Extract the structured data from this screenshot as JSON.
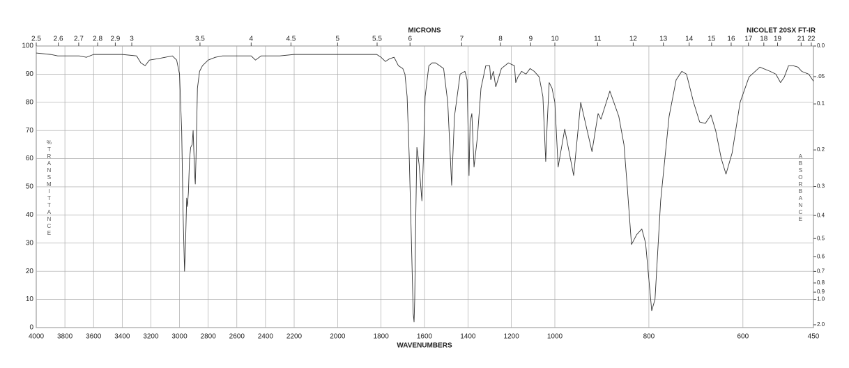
{
  "chart_data": {
    "type": "line",
    "title": "NICOLET 20SX FT-IR",
    "x_label": "WAVENUMBERS",
    "x2_label": "MICRONS",
    "y_label": "%TRANSMITTANCE",
    "y2_label": "ABSORBANCE",
    "color": "#333333",
    "grid": true,
    "xlim": [
      4000,
      450
    ],
    "x_breaks": [
      2200,
      1000
    ],
    "xticks": [
      4000,
      3800,
      3600,
      3400,
      3200,
      3000,
      2800,
      2600,
      2400,
      2200,
      2000,
      1800,
      1600,
      1400,
      1200,
      1000,
      800,
      600,
      450
    ],
    "ylim": [
      0,
      100
    ],
    "yticks": [
      0,
      10,
      20,
      30,
      40,
      50,
      60,
      70,
      80,
      90,
      100
    ],
    "x2ticks": [
      2.5,
      2.6,
      2.7,
      2.8,
      2.9,
      3,
      3.5,
      4,
      4.5,
      5,
      5.5,
      6,
      7,
      8,
      9,
      10,
      11,
      12,
      13,
      14,
      15,
      16,
      17,
      18,
      19,
      21,
      22
    ],
    "y2ticks": [
      {
        "value": 0,
        "label": "0.0"
      },
      {
        "value": 0.05,
        "label": ".05"
      },
      0.1,
      0.2,
      0.3,
      0.4,
      0.5,
      0.6,
      0.7,
      0.8,
      0.9,
      {
        "value": 1,
        "label": "1.0"
      },
      {
        "value": 2,
        "label": "2.0"
      }
    ],
    "x": [
      4000,
      3900,
      3850,
      3800,
      3700,
      3650,
      3600,
      3500,
      3400,
      3300,
      3270,
      3240,
      3210,
      3150,
      3100,
      3050,
      3020,
      3000,
      2985,
      2975,
      2965,
      2958,
      2950,
      2945,
      2938,
      2930,
      2922,
      2912,
      2905,
      2895,
      2890,
      2885,
      2875,
      2860,
      2840,
      2800,
      2750,
      2700,
      2600,
      2500,
      2470,
      2430,
      2300,
      2200,
      2000,
      1900,
      1820,
      1800,
      1780,
      1760,
      1740,
      1720,
      1700,
      1690,
      1680,
      1670,
      1660,
      1652,
      1648,
      1645,
      1640,
      1635,
      1625,
      1612,
      1605,
      1597,
      1580,
      1565,
      1549,
      1530,
      1512,
      1493,
      1475,
      1462,
      1436,
      1414,
      1404,
      1395,
      1390,
      1382,
      1372,
      1356,
      1340,
      1318,
      1300,
      1295,
      1283,
      1272,
      1246,
      1214,
      1186,
      1180,
      1170,
      1153,
      1133,
      1114,
      1095,
      1072,
      1055,
      1042,
      1035,
      1026,
      1013,
      1000,
      993,
      979,
      960,
      945,
      921,
      908,
      902,
      883,
      864,
      853,
      846,
      837,
      826,
      815,
      807,
      794,
      787,
      775,
      757,
      742,
      730,
      720,
      705,
      692,
      680,
      668,
      658,
      646,
      636,
      623,
      606,
      587,
      564,
      542,
      530,
      520,
      512,
      503,
      493,
      483,
      475,
      460,
      450
    ],
    "values": [
      97.5,
      97,
      96.5,
      96.5,
      96.5,
      96,
      97,
      97,
      97,
      96.5,
      94,
      93,
      95,
      95.5,
      96,
      96.5,
      95,
      90,
      70,
      40,
      20,
      30,
      46,
      43,
      48,
      60,
      64,
      65,
      70,
      55,
      51,
      60,
      85,
      91,
      93,
      95,
      96,
      96.5,
      96.5,
      96.5,
      95,
      96.5,
      96.5,
      97,
      97,
      97,
      97,
      96,
      94.5,
      95.5,
      96,
      93,
      92,
      90,
      82,
      60,
      30,
      5,
      2,
      10,
      40,
      64,
      58,
      45,
      60,
      82,
      93,
      94,
      94,
      93,
      92,
      80,
      50.5,
      75,
      90,
      91,
      88,
      54,
      73,
      76,
      57,
      68,
      85,
      93,
      93,
      88,
      91,
      85.5,
      92,
      94,
      93,
      87,
      89,
      91,
      90,
      92,
      91,
      89,
      82,
      59,
      73,
      87,
      85,
      80,
      57,
      70.5,
      54,
      80,
      62.5,
      76,
      74,
      84,
      75,
      65,
      50,
      29.5,
      33,
      35,
      30,
      6,
      10,
      45,
      75,
      88,
      91,
      90,
      80,
      73,
      72.5,
      75.5,
      70,
      60,
      54.5,
      62,
      80,
      89,
      92.5,
      91,
      90,
      87,
      89,
      93,
      93,
      92.5,
      91,
      90,
      87.5
    ]
  }
}
